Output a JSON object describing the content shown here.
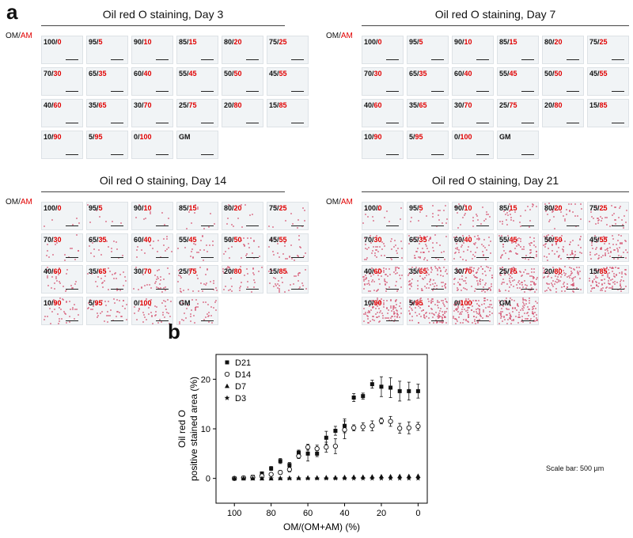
{
  "panel_a_letter": "a",
  "panel_b_letter": "b",
  "row_label": {
    "om": "OM",
    "slash": "/",
    "am": "AM"
  },
  "tile_labels": [
    {
      "om": "100",
      "am": "0"
    },
    {
      "om": "95",
      "am": "5"
    },
    {
      "om": "90",
      "am": "10"
    },
    {
      "om": "85",
      "am": "15"
    },
    {
      "om": "80",
      "am": "20"
    },
    {
      "om": "75",
      "am": "25"
    },
    {
      "om": "70",
      "am": "30"
    },
    {
      "om": "65",
      "am": "35"
    },
    {
      "om": "60",
      "am": "40"
    },
    {
      "om": "55",
      "am": "45"
    },
    {
      "om": "50",
      "am": "50"
    },
    {
      "om": "45",
      "am": "55"
    },
    {
      "om": "40",
      "am": "60"
    },
    {
      "om": "35",
      "am": "65"
    },
    {
      "om": "30",
      "am": "70"
    },
    {
      "om": "25",
      "am": "75"
    },
    {
      "om": "20",
      "am": "80"
    },
    {
      "om": "15",
      "am": "85"
    },
    {
      "om": "10",
      "am": "90"
    },
    {
      "om": "5",
      "am": "95"
    },
    {
      "om": "0",
      "am": "100"
    },
    {
      "om": "GM",
      "am": ""
    }
  ],
  "blocks": [
    {
      "title": "Oil red O staining, Day 3"
    },
    {
      "title": "Oil red O staining, Day 7"
    },
    {
      "title": "Oil red O staining, Day 14"
    },
    {
      "title": "Oil red O staining, Day 21"
    }
  ],
  "scale_note": "Scale bar: 500 µm",
  "colors": {
    "accent_red": "#e00000",
    "stain": "#d4506e"
  },
  "chart_data": {
    "type": "scatter",
    "xlabel": "OM/(OM+AM) (%)",
    "ylabel": "Oil red O positive stained area (%)",
    "ylabel_lines": [
      "Oil red O",
      "positive stained area (%)"
    ],
    "xlim": [
      110,
      -5
    ],
    "ylim": [
      -5,
      25
    ],
    "xticks": [
      100,
      80,
      60,
      40,
      20,
      0
    ],
    "yticks": [
      0,
      10,
      20
    ],
    "x": [
      100,
      95,
      90,
      85,
      80,
      75,
      70,
      65,
      60,
      55,
      50,
      45,
      40,
      35,
      30,
      25,
      20,
      15,
      10,
      5,
      0
    ],
    "legend_position": "top-left",
    "series": [
      {
        "name": "D21",
        "marker": "square",
        "values": [
          0,
          0.1,
          0.3,
          1.0,
          2.0,
          3.5,
          2.7,
          5.2,
          5.0,
          5.0,
          8.2,
          9.6,
          10.6,
          16.3,
          16.6,
          19.0,
          18.5,
          18.3,
          17.6,
          17.6,
          17.6
        ],
        "errors": [
          0,
          0.1,
          0.2,
          0.3,
          0.4,
          0.5,
          0.5,
          0.5,
          1.5,
          0.6,
          1.3,
          0.9,
          1.4,
          0.8,
          0.6,
          0.8,
          2.0,
          2.0,
          2.0,
          1.8,
          1.4
        ]
      },
      {
        "name": "D14",
        "marker": "circle-open",
        "values": [
          0,
          0.1,
          0.2,
          0.5,
          0.8,
          1.2,
          1.8,
          4.5,
          6.3,
          6.0,
          6.3,
          6.5,
          9.8,
          10.2,
          10.4,
          10.6,
          11.6,
          11.5,
          10.1,
          10.2,
          10.5
        ],
        "errors": [
          0,
          0.1,
          0.1,
          0.2,
          0.3,
          0.4,
          0.5,
          0.5,
          0.6,
          0.7,
          1.0,
          1.5,
          1.8,
          0.6,
          0.8,
          1.0,
          0.6,
          1.0,
          1.0,
          1.2,
          0.8
        ]
      },
      {
        "name": "D7",
        "marker": "triangle",
        "values": [
          0,
          0,
          0,
          0,
          0,
          0.05,
          0.1,
          0.1,
          0.15,
          0.15,
          0.2,
          0.2,
          0.25,
          0.3,
          0.3,
          0.35,
          0.4,
          0.4,
          0.45,
          0.45,
          0.5
        ],
        "errors": [
          0,
          0,
          0,
          0,
          0,
          0,
          0,
          0,
          0,
          0,
          0,
          0,
          0,
          0,
          0,
          0,
          0,
          0,
          0,
          0,
          0
        ]
      },
      {
        "name": "D3",
        "marker": "star",
        "values": [
          0,
          0,
          0,
          0,
          0,
          0,
          0,
          0,
          0,
          0,
          0,
          0,
          0,
          0,
          0,
          0,
          0,
          0,
          0,
          0,
          0
        ],
        "errors": [
          0,
          0,
          0,
          0,
          0,
          0,
          0,
          0,
          0,
          0,
          0,
          0,
          0,
          0,
          0,
          0,
          0,
          0,
          0,
          0,
          0
        ]
      }
    ]
  }
}
